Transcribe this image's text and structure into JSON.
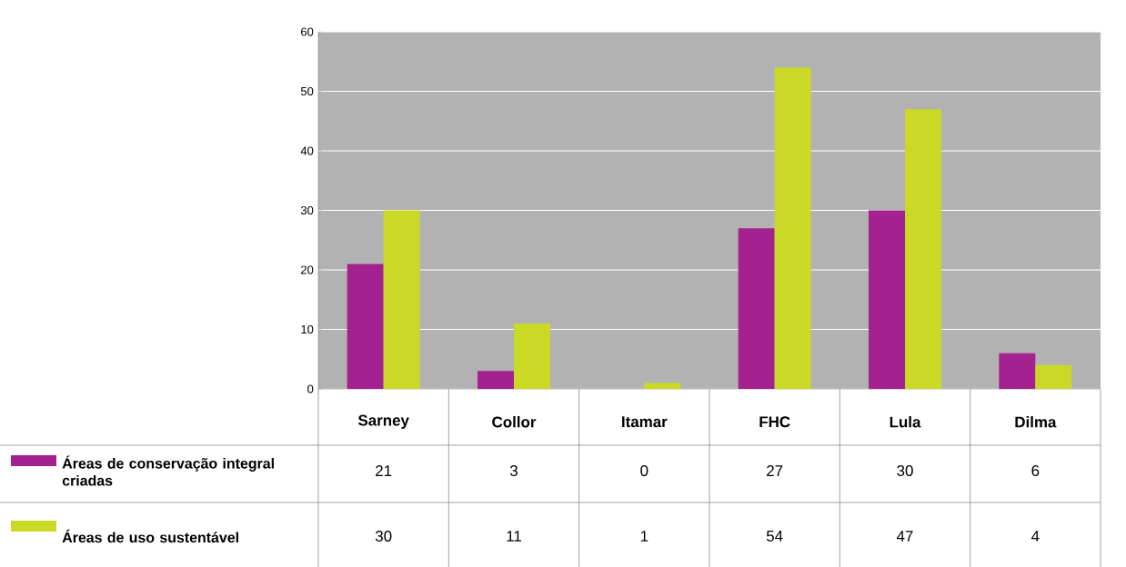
{
  "chart_data": {
    "type": "bar",
    "categories": [
      "Sarney",
      "Collor",
      "Itamar",
      "FHC",
      "Lula",
      "Dilma"
    ],
    "series": [
      {
        "name": "Áreas de conservação integral criadas",
        "color": "#a3228f",
        "values": [
          21,
          3,
          0,
          27,
          30,
          6
        ]
      },
      {
        "name": "Áreas de uso sustentável",
        "color": "#c9d925",
        "values": [
          30,
          11,
          1,
          54,
          47,
          4
        ]
      }
    ],
    "ylim": [
      0,
      60
    ],
    "yticks": [
      0,
      10,
      20,
      30,
      40,
      50,
      60
    ],
    "grid": "y",
    "legend": "bottom left",
    "data_labels": true
  }
}
